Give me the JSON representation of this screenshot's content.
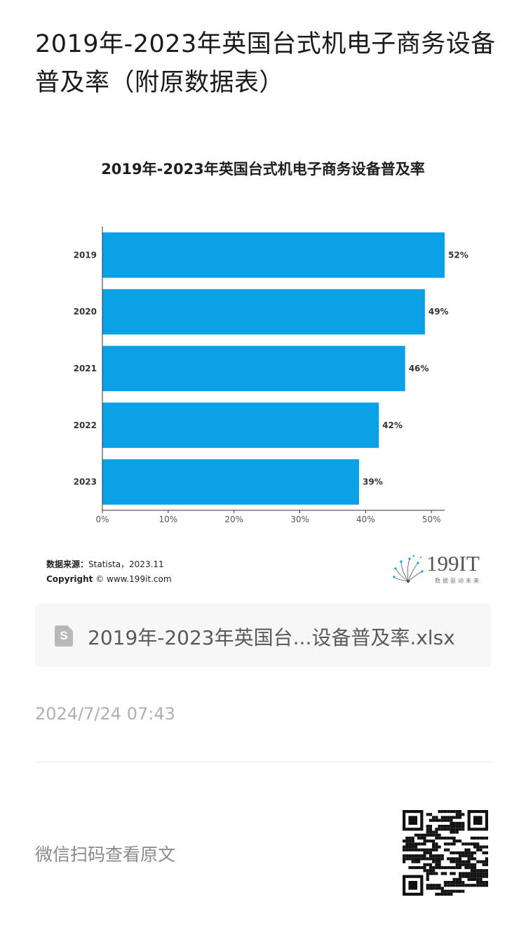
{
  "article": {
    "title": "2019年-2023年英国台式机电子商务设备普及率（附原数据表）"
  },
  "chart_data": {
    "type": "bar",
    "orientation": "horizontal",
    "title": "2019年-2023年英国台式机电子商务设备普及率",
    "categories": [
      "2019",
      "2020",
      "2021",
      "2022",
      "2023"
    ],
    "values": [
      52,
      49,
      46,
      42,
      39
    ],
    "value_labels": [
      "52%",
      "49%",
      "46%",
      "42%",
      "39%"
    ],
    "xlim": [
      0,
      52
    ],
    "xticks": [
      0,
      10,
      20,
      30,
      40,
      50
    ],
    "xtick_labels": [
      "0%",
      "10%",
      "20%",
      "30%",
      "40%",
      "50%"
    ],
    "xlabel": "",
    "ylabel": "",
    "grid": false,
    "bar_color": "#0aa0e6"
  },
  "source": {
    "label": "数据来源：",
    "text": "Statista，2023.11",
    "copyright_label": "Copyright",
    "copyright_text": "© www.199it.com"
  },
  "logo": {
    "name": "199IT",
    "tagline": "数据驱动未来"
  },
  "attachment": {
    "icon": "spreadsheet-file-icon",
    "icon_letter": "S",
    "file_name": "2019年-2023年英国台...设备普及率.xlsx"
  },
  "meta": {
    "timestamp": "2024/7/24 07:43"
  },
  "footer": {
    "scan_text": "微信扫码查看原文",
    "qr_icon": "qr-code-icon"
  }
}
